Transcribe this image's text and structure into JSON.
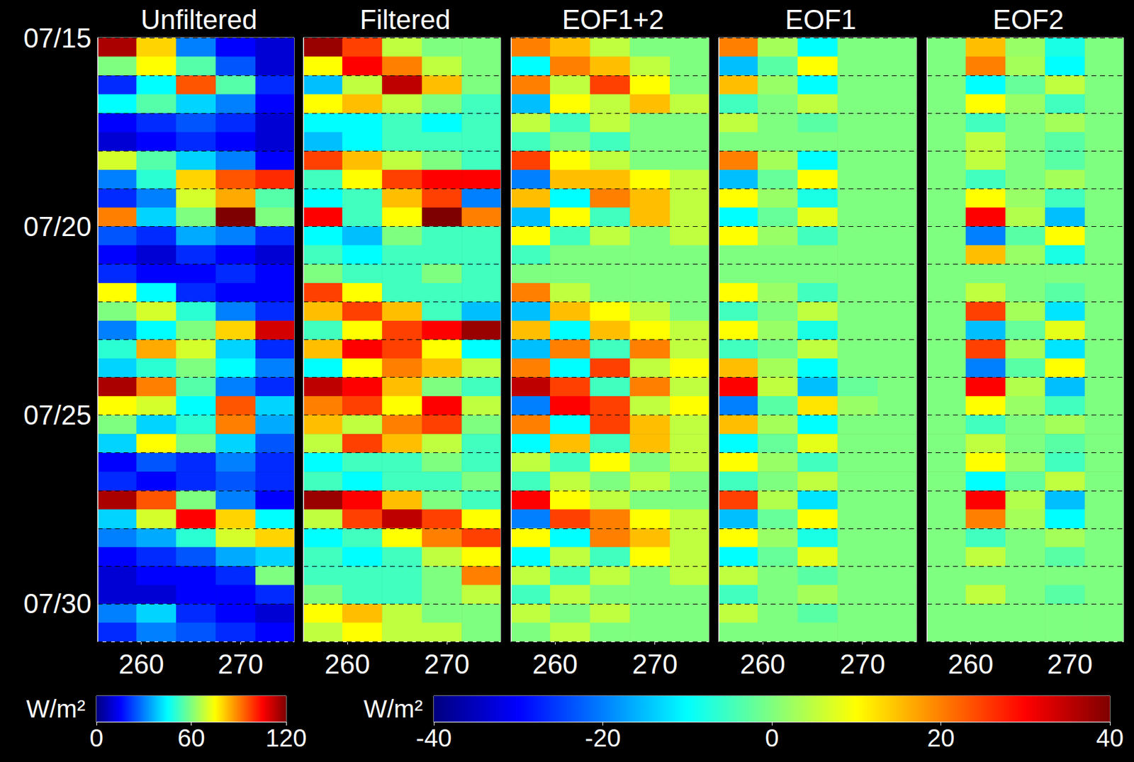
{
  "chart_data": {
    "type": "heatmap",
    "grid": true,
    "x": [
      257.5,
      261.5,
      265.5,
      269.5,
      273.5
    ],
    "y": [
      15.25,
      15.75,
      16.25,
      16.75,
      17.25,
      17.75,
      18.25,
      18.75,
      19.25,
      19.75,
      20.25,
      20.75,
      21.25,
      21.75,
      22.25,
      22.75,
      23.25,
      23.75,
      24.25,
      24.75,
      25.25,
      25.75,
      26.25,
      26.75,
      27.25,
      27.75,
      28.25,
      28.75,
      29.25,
      29.75,
      30.25,
      30.75
    ],
    "xlim": [
      255.6,
      275.4
    ],
    "xticks": [
      260,
      270
    ],
    "ylim": [
      15,
      31
    ],
    "yticks": [
      {
        "value": 15,
        "label": "07/15"
      },
      {
        "value": 20,
        "label": "07/20"
      },
      {
        "value": 25,
        "label": "07/25"
      },
      {
        "value": 30,
        "label": "07/30"
      }
    ],
    "colorbars": [
      {
        "unit": "W/m²",
        "range": [
          0,
          120
        ],
        "ticks": [
          0,
          60,
          120
        ]
      },
      {
        "unit": "W/m²",
        "range": [
          -40,
          40
        ],
        "ticks": [
          -40,
          -20,
          0,
          20,
          40
        ]
      }
    ],
    "panels": [
      {
        "title": "Unfiltered",
        "colorbar": 0,
        "values": [
          [
            115,
            80,
            30,
            15,
            10
          ],
          [
            60,
            75,
            55,
            25,
            10
          ],
          [
            20,
            45,
            95,
            55,
            20
          ],
          [
            45,
            55,
            40,
            30,
            15
          ],
          [
            15,
            20,
            25,
            20,
            10
          ],
          [
            10,
            15,
            20,
            15,
            10
          ],
          [
            70,
            55,
            40,
            30,
            15
          ],
          [
            30,
            50,
            80,
            95,
            100
          ],
          [
            20,
            30,
            70,
            85,
            55
          ],
          [
            90,
            40,
            60,
            120,
            60
          ],
          [
            25,
            20,
            35,
            30,
            20
          ],
          [
            15,
            10,
            20,
            15,
            10
          ],
          [
            20,
            15,
            15,
            20,
            15
          ],
          [
            75,
            45,
            20,
            15,
            15
          ],
          [
            60,
            70,
            50,
            30,
            20
          ],
          [
            30,
            45,
            60,
            80,
            110
          ],
          [
            50,
            85,
            70,
            40,
            20
          ],
          [
            40,
            50,
            60,
            45,
            30
          ],
          [
            115,
            90,
            55,
            30,
            20
          ],
          [
            75,
            70,
            45,
            95,
            40
          ],
          [
            60,
            40,
            50,
            90,
            35
          ],
          [
            40,
            75,
            60,
            40,
            25
          ],
          [
            15,
            25,
            20,
            30,
            20
          ],
          [
            20,
            15,
            20,
            25,
            20
          ],
          [
            115,
            95,
            60,
            30,
            15
          ],
          [
            40,
            70,
            105,
            80,
            45
          ],
          [
            30,
            35,
            50,
            70,
            80
          ],
          [
            15,
            20,
            25,
            35,
            40
          ],
          [
            10,
            15,
            15,
            20,
            60
          ],
          [
            10,
            10,
            15,
            15,
            20
          ],
          [
            30,
            40,
            20,
            15,
            10
          ],
          [
            20,
            30,
            25,
            20,
            15
          ]
        ]
      },
      {
        "title": "Filtered",
        "colorbar": 1,
        "tick_labels": "x",
        "values": [
          [
            38,
            25,
            5,
            0,
            0
          ],
          [
            10,
            30,
            20,
            5,
            0
          ],
          [
            -15,
            5,
            35,
            15,
            0
          ],
          [
            10,
            15,
            5,
            0,
            -5
          ],
          [
            -10,
            -10,
            -5,
            -10,
            -5
          ],
          [
            -15,
            -10,
            -5,
            -5,
            -5
          ],
          [
            25,
            15,
            5,
            0,
            -5
          ],
          [
            -5,
            10,
            25,
            30,
            30
          ],
          [
            -10,
            -5,
            15,
            25,
            -20
          ],
          [
            30,
            -5,
            10,
            40,
            20
          ],
          [
            -10,
            -15,
            0,
            -5,
            -5
          ],
          [
            -5,
            -10,
            -5,
            -5,
            -5
          ],
          [
            0,
            -5,
            -5,
            0,
            -5
          ],
          [
            25,
            10,
            -5,
            -5,
            -5
          ],
          [
            15,
            25,
            15,
            -5,
            -15
          ],
          [
            -5,
            10,
            25,
            30,
            38
          ],
          [
            15,
            30,
            25,
            10,
            -10
          ],
          [
            -10,
            10,
            20,
            15,
            5
          ],
          [
            35,
            30,
            15,
            0,
            -5
          ],
          [
            20,
            25,
            10,
            30,
            5
          ],
          [
            15,
            5,
            20,
            25,
            0
          ],
          [
            5,
            25,
            15,
            5,
            -5
          ],
          [
            -10,
            -5,
            -5,
            0,
            -5
          ],
          [
            -5,
            -10,
            -5,
            -5,
            0
          ],
          [
            38,
            30,
            15,
            0,
            -5
          ],
          [
            5,
            25,
            35,
            25,
            10
          ],
          [
            -10,
            -5,
            10,
            20,
            25
          ],
          [
            -5,
            -10,
            -5,
            5,
            10
          ],
          [
            -5,
            -5,
            -5,
            0,
            20
          ],
          [
            0,
            -5,
            -5,
            0,
            5
          ],
          [
            10,
            15,
            5,
            0,
            0
          ],
          [
            5,
            10,
            5,
            5,
            0
          ]
        ]
      },
      {
        "title": "EOF1+2",
        "colorbar": 1,
        "tick_labels": "x",
        "values": [
          [
            20,
            15,
            5,
            0,
            0
          ],
          [
            -10,
            20,
            15,
            5,
            0
          ],
          [
            20,
            5,
            25,
            10,
            0
          ],
          [
            -15,
            10,
            5,
            15,
            5
          ],
          [
            5,
            -5,
            5,
            0,
            0
          ],
          [
            -5,
            0,
            -5,
            0,
            0
          ],
          [
            25,
            10,
            5,
            0,
            0
          ],
          [
            -20,
            15,
            15,
            10,
            5
          ],
          [
            15,
            -10,
            20,
            15,
            5
          ],
          [
            -15,
            10,
            -5,
            15,
            5
          ],
          [
            10,
            -5,
            5,
            0,
            5
          ],
          [
            -5,
            0,
            0,
            0,
            0
          ],
          [
            0,
            0,
            0,
            0,
            0
          ],
          [
            20,
            5,
            0,
            0,
            0
          ],
          [
            -15,
            15,
            10,
            5,
            0
          ],
          [
            15,
            -10,
            15,
            10,
            5
          ],
          [
            -15,
            20,
            -5,
            20,
            5
          ],
          [
            20,
            -10,
            25,
            5,
            10
          ],
          [
            35,
            25,
            -5,
            20,
            5
          ],
          [
            -20,
            30,
            25,
            5,
            10
          ],
          [
            20,
            -10,
            25,
            15,
            5
          ],
          [
            -10,
            15,
            -5,
            15,
            5
          ],
          [
            5,
            -5,
            10,
            0,
            5
          ],
          [
            -5,
            5,
            0,
            5,
            0
          ],
          [
            30,
            10,
            5,
            0,
            0
          ],
          [
            -20,
            25,
            20,
            10,
            5
          ],
          [
            10,
            -10,
            20,
            15,
            5
          ],
          [
            -10,
            5,
            -5,
            10,
            5
          ],
          [
            5,
            -5,
            5,
            0,
            5
          ],
          [
            -5,
            5,
            0,
            0,
            0
          ],
          [
            5,
            0,
            5,
            0,
            0
          ],
          [
            0,
            5,
            0,
            0,
            0
          ]
        ]
      },
      {
        "title": "EOF1",
        "colorbar": 1,
        "tick_labels": "x",
        "values": [
          [
            20,
            3,
            -10,
            0,
            0
          ],
          [
            -15,
            -3,
            10,
            0,
            0
          ],
          [
            15,
            2,
            -10,
            0,
            0
          ],
          [
            -5,
            0,
            5,
            0,
            0
          ],
          [
            5,
            0,
            -3,
            0,
            0
          ],
          [
            0,
            0,
            0,
            0,
            0
          ],
          [
            20,
            3,
            -10,
            0,
            0
          ],
          [
            -15,
            -2,
            10,
            0,
            0
          ],
          [
            10,
            2,
            -8,
            0,
            0
          ],
          [
            -10,
            -2,
            8,
            0,
            0
          ],
          [
            10,
            2,
            -5,
            0,
            0
          ],
          [
            0,
            0,
            0,
            0,
            0
          ],
          [
            0,
            0,
            0,
            0,
            0
          ],
          [
            10,
            2,
            -5,
            0,
            0
          ],
          [
            -5,
            0,
            5,
            0,
            0
          ],
          [
            10,
            2,
            -8,
            0,
            0
          ],
          [
            -5,
            -1,
            5,
            0,
            0
          ],
          [
            15,
            3,
            -10,
            0,
            0
          ],
          [
            30,
            5,
            -15,
            -2,
            0
          ],
          [
            -20,
            -3,
            12,
            2,
            0
          ],
          [
            15,
            3,
            -10,
            0,
            0
          ],
          [
            -10,
            -2,
            8,
            0,
            0
          ],
          [
            10,
            2,
            -5,
            0,
            0
          ],
          [
            -5,
            0,
            5,
            0,
            0
          ],
          [
            25,
            4,
            -12,
            0,
            0
          ],
          [
            -15,
            -2,
            10,
            0,
            0
          ],
          [
            10,
            2,
            -8,
            0,
            0
          ],
          [
            -10,
            -2,
            8,
            0,
            0
          ],
          [
            5,
            0,
            -3,
            0,
            0
          ],
          [
            -5,
            0,
            3,
            0,
            0
          ],
          [
            5,
            0,
            -3,
            0,
            0
          ],
          [
            0,
            0,
            0,
            0,
            0
          ]
        ]
      },
      {
        "title": "EOF2",
        "colorbar": 1,
        "tick_labels": "x",
        "values": [
          [
            0,
            15,
            2,
            -8,
            0
          ],
          [
            0,
            20,
            3,
            -10,
            0
          ],
          [
            0,
            -10,
            -2,
            5,
            0
          ],
          [
            0,
            10,
            2,
            -5,
            0
          ],
          [
            0,
            -5,
            0,
            3,
            0
          ],
          [
            0,
            5,
            0,
            -3,
            0
          ],
          [
            0,
            5,
            0,
            -3,
            0
          ],
          [
            0,
            -5,
            0,
            3,
            0
          ],
          [
            0,
            10,
            2,
            -5,
            0
          ],
          [
            0,
            30,
            4,
            -15,
            0
          ],
          [
            0,
            -20,
            -3,
            10,
            0
          ],
          [
            0,
            15,
            2,
            -8,
            0
          ],
          [
            0,
            0,
            0,
            0,
            0
          ],
          [
            0,
            5,
            0,
            -3,
            0
          ],
          [
            0,
            25,
            3,
            -12,
            0
          ],
          [
            0,
            -15,
            -2,
            8,
            0
          ],
          [
            0,
            25,
            3,
            -12,
            0
          ],
          [
            0,
            -20,
            -3,
            10,
            0
          ],
          [
            0,
            30,
            4,
            -15,
            0
          ],
          [
            0,
            10,
            2,
            -5,
            0
          ],
          [
            0,
            -5,
            0,
            3,
            0
          ],
          [
            0,
            5,
            0,
            -3,
            0
          ],
          [
            0,
            10,
            2,
            -5,
            0
          ],
          [
            0,
            -10,
            -2,
            5,
            0
          ],
          [
            0,
            30,
            4,
            -15,
            0
          ],
          [
            0,
            20,
            3,
            -10,
            0
          ],
          [
            0,
            -5,
            0,
            3,
            0
          ],
          [
            0,
            5,
            0,
            -3,
            0
          ],
          [
            0,
            0,
            0,
            0,
            0
          ],
          [
            0,
            5,
            0,
            -3,
            0
          ],
          [
            0,
            0,
            0,
            0,
            0
          ],
          [
            0,
            0,
            0,
            0,
            0
          ]
        ]
      }
    ]
  }
}
